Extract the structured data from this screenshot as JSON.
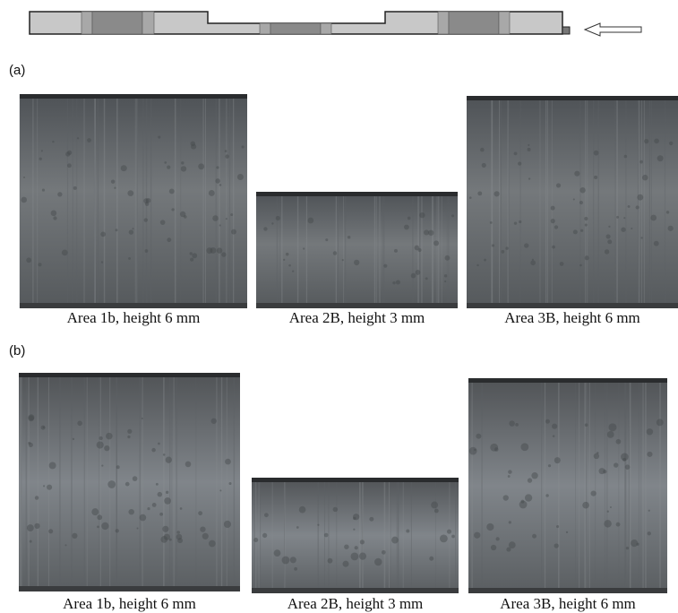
{
  "panels": [
    {
      "label": "(a)",
      "images": [
        {
          "caption": "Area 1b, height 6 mm"
        },
        {
          "caption": "Area 2B, height 3 mm"
        },
        {
          "caption": "Area 3B, height 6 mm"
        }
      ]
    },
    {
      "label": "(b)",
      "images": [
        {
          "caption": "Area 1b, height 6 mm"
        },
        {
          "caption": "Area 2B, height 3 mm"
        },
        {
          "caption": "Area 3B, height 6 mm"
        }
      ]
    }
  ]
}
